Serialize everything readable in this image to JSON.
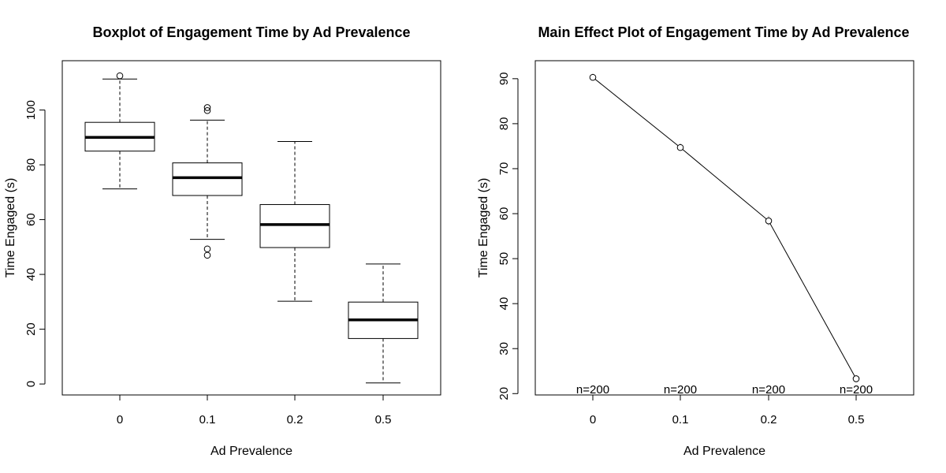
{
  "chart_data": [
    {
      "type": "boxplot",
      "title": "Boxplot of Engagement Time by Ad Prevalence",
      "xlabel": "Ad Prevalence",
      "ylabel": "Time Engaged (s)",
      "categories": [
        "0",
        "0.1",
        "0.2",
        "0.5"
      ],
      "ylim": [
        -4,
        118
      ],
      "yticks": [
        0,
        20,
        40,
        60,
        80,
        100
      ],
      "boxes": [
        {
          "category": "0",
          "whisker_low": 71.2,
          "q1": 85.0,
          "median": 90.0,
          "q3": 95.5,
          "whisker_high": 111.3,
          "outliers": [
            112.5
          ]
        },
        {
          "category": "0.1",
          "whisker_low": 52.8,
          "q1": 68.8,
          "median": 75.3,
          "q3": 80.7,
          "whisker_high": 96.3,
          "outliers": [
            49.3,
            47.0,
            99.8,
            100.9
          ]
        },
        {
          "category": "0.2",
          "whisker_low": 30.2,
          "q1": 49.8,
          "median": 58.2,
          "q3": 65.5,
          "whisker_high": 88.5,
          "outliers": []
        },
        {
          "category": "0.5",
          "whisker_low": 0.4,
          "q1": 16.6,
          "median": 23.4,
          "q3": 29.9,
          "whisker_high": 43.8,
          "outliers": []
        }
      ],
      "grid": false,
      "legend": "none"
    },
    {
      "type": "line",
      "title": "Main Effect Plot of Engagement Time by Ad Prevalence",
      "xlabel": "Ad Prevalence",
      "ylabel": "Time Engaged (s)",
      "categories": [
        "0",
        "0.1",
        "0.2",
        "0.5"
      ],
      "values": [
        90.3,
        74.7,
        58.4,
        23.3
      ],
      "error_low": [
        89.7,
        74.0,
        57.4,
        22.5
      ],
      "error_high": [
        91.1,
        75.6,
        59.5,
        24.1
      ],
      "n_labels": [
        "n=200",
        "n=200",
        "n=200",
        "n=200"
      ],
      "ylim": [
        19.7,
        94
      ],
      "yticks": [
        20,
        30,
        40,
        50,
        60,
        70,
        80,
        90
      ],
      "grid": false,
      "legend": "none"
    }
  ]
}
